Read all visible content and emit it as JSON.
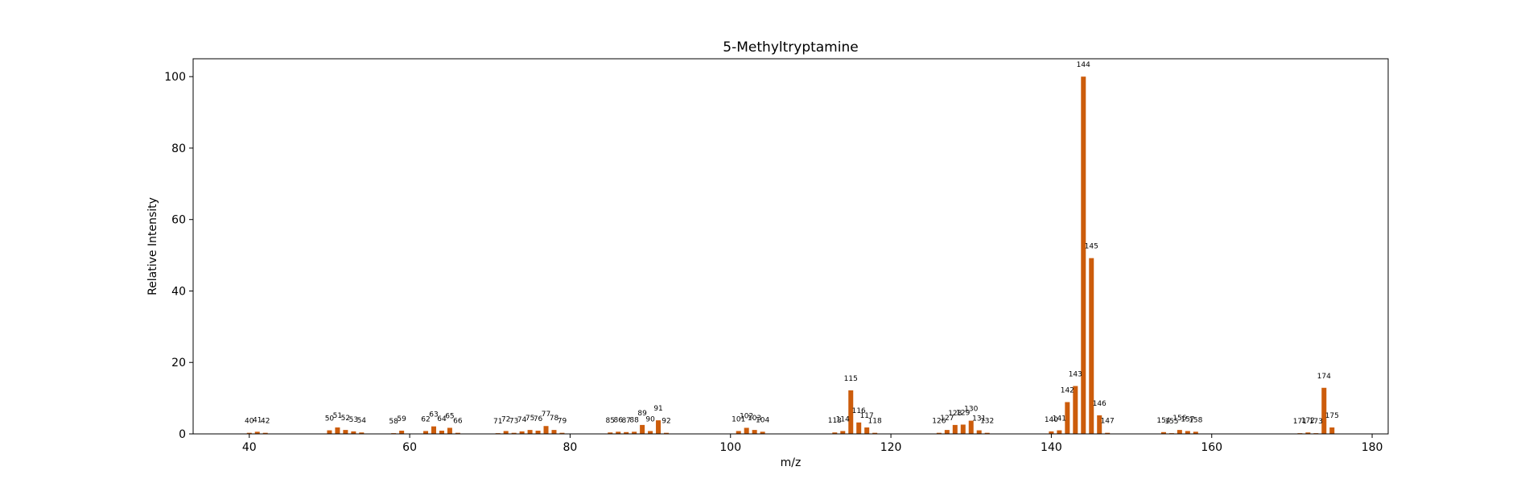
{
  "chart_data": {
    "type": "bar",
    "title": "5-Methyltryptamine",
    "xlabel": "m/z",
    "ylabel": "Relative Intensity",
    "xlim": [
      33,
      182
    ],
    "ylim": [
      0,
      105
    ],
    "xticks": [
      40,
      60,
      80,
      100,
      120,
      140,
      160,
      180
    ],
    "yticks": [
      0,
      20,
      40,
      60,
      80,
      100
    ],
    "bar_color": "#cc5c0b",
    "grid": false,
    "legend": "none",
    "x": [
      40,
      41,
      42,
      50,
      51,
      52,
      53,
      54,
      58,
      59,
      62,
      63,
      64,
      65,
      66,
      71,
      72,
      73,
      74,
      75,
      76,
      77,
      78,
      79,
      85,
      86,
      87,
      88,
      89,
      90,
      91,
      92,
      101,
      102,
      103,
      104,
      113,
      114,
      115,
      116,
      117,
      118,
      126,
      127,
      128,
      129,
      130,
      131,
      132,
      140,
      141,
      142,
      143,
      144,
      145,
      146,
      147,
      154,
      155,
      156,
      157,
      158,
      171,
      172,
      173,
      174,
      175
    ],
    "values": [
      0.3,
      0.6,
      0.3,
      1.0,
      1.8,
      1.1,
      0.7,
      0.4,
      0.2,
      0.9,
      0.8,
      2.1,
      0.9,
      1.7,
      0.3,
      0.2,
      0.8,
      0.3,
      0.7,
      1.1,
      0.9,
      2.2,
      1.1,
      0.3,
      0.4,
      0.6,
      0.5,
      0.6,
      2.5,
      0.8,
      3.8,
      0.3,
      0.8,
      1.7,
      1.1,
      0.6,
      0.4,
      0.8,
      12.2,
      3.2,
      1.8,
      0.3,
      0.3,
      1.1,
      2.5,
      2.6,
      3.7,
      1.0,
      0.3,
      0.7,
      1.0,
      8.9,
      13.4,
      100.0,
      49.2,
      5.2,
      0.3,
      0.5,
      0.2,
      1.1,
      0.8,
      0.6,
      0.2,
      0.4,
      0.2,
      12.9,
      1.8
    ],
    "labels": [
      "40",
      "41",
      "42",
      "50",
      "51",
      "52",
      "53",
      "54",
      "58",
      "59",
      "62",
      "63",
      "64",
      "65",
      "66",
      "71",
      "72",
      "73",
      "74",
      "75",
      "76",
      "77",
      "78",
      "79",
      "85",
      "86",
      "87",
      "88",
      "89",
      "90",
      "91",
      "92",
      "101",
      "102",
      "103",
      "104",
      "113",
      "114",
      "115",
      "116",
      "117",
      "118",
      "126",
      "127",
      "128",
      "129",
      "130",
      "131",
      "132",
      "140",
      "141",
      "142",
      "143",
      "144",
      "145",
      "146",
      "147",
      "154",
      "155",
      "156",
      "157",
      "158",
      "171",
      "172",
      "173",
      "174",
      "175"
    ]
  }
}
